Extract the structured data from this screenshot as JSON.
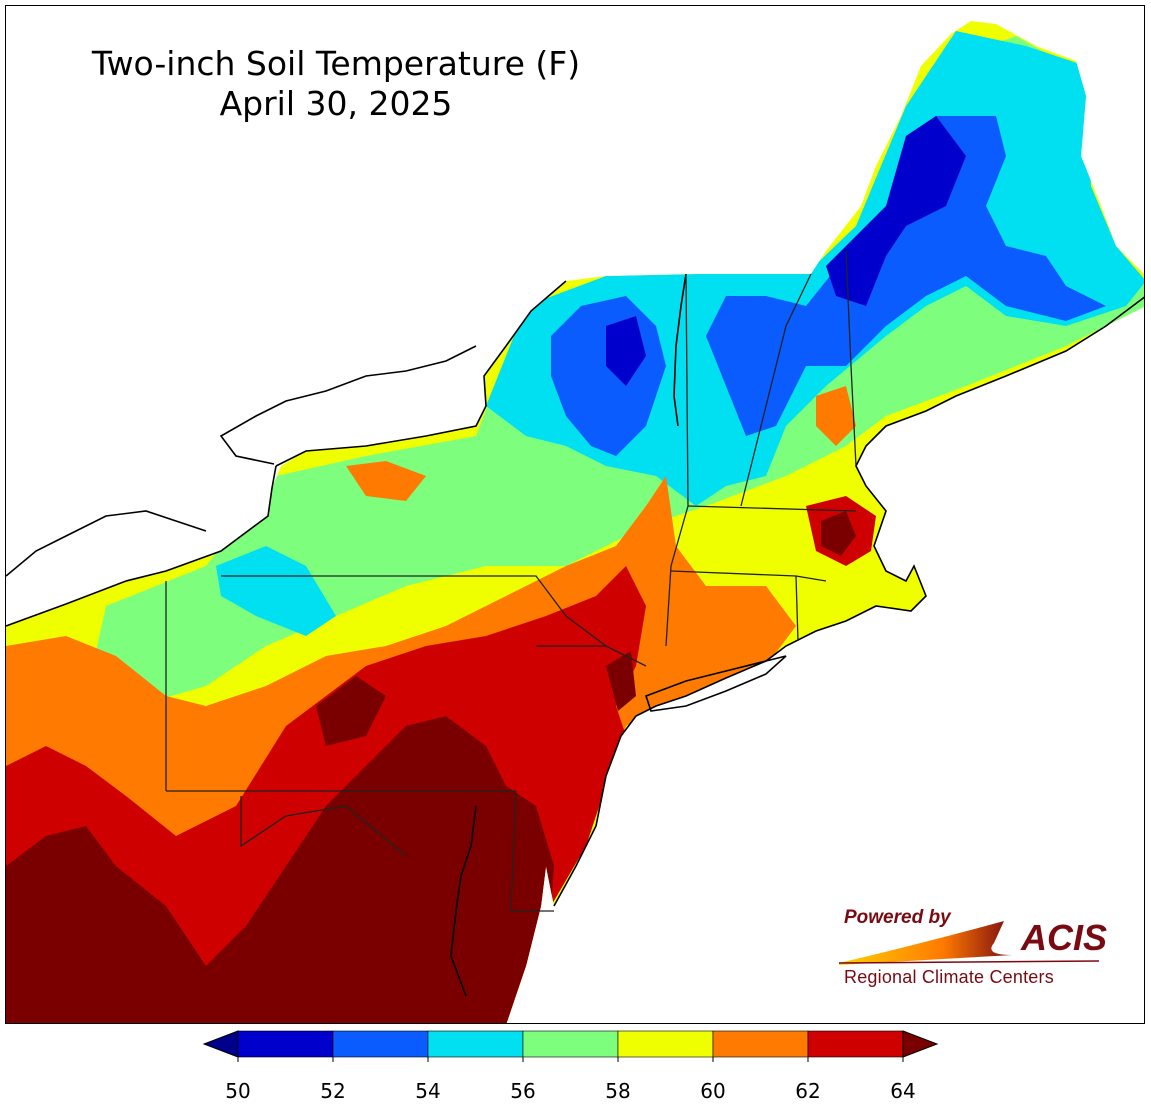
{
  "title": {
    "line1": "Two-inch Soil Temperature (F)",
    "line2": "April 30, 2025"
  },
  "logo": {
    "powered_by": "Powered by",
    "name": "ACIS",
    "subtitle": "Regional Climate Centers"
  },
  "legend": {
    "ticks": [
      "50",
      "52",
      "54",
      "56",
      "58",
      "60",
      "62",
      "64"
    ],
    "bins": [
      {
        "from": 50,
        "to": 52,
        "color": "#0000cd"
      },
      {
        "from": 52,
        "to": 54,
        "color": "#0a5cff"
      },
      {
        "from": 54,
        "to": 56,
        "color": "#00e0f0"
      },
      {
        "from": 56,
        "to": 58,
        "color": "#7dff7d"
      },
      {
        "from": 58,
        "to": 60,
        "color": "#f0ff00"
      },
      {
        "from": 60,
        "to": 62,
        "color": "#ff7a00"
      },
      {
        "from": 62,
        "to": 64,
        "color": "#cf0000"
      }
    ],
    "below_color": "#00008b",
    "above_color": "#7a0000",
    "units": "F"
  }
}
